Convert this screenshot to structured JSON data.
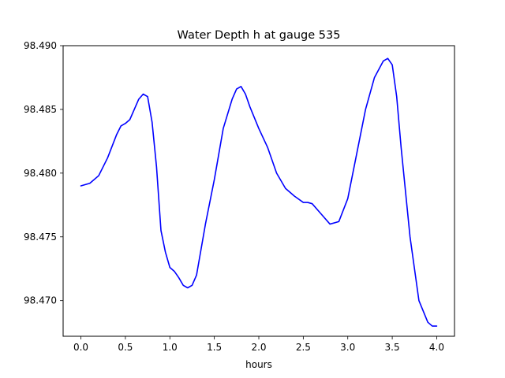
{
  "chart_data": {
    "type": "line",
    "title": "Water Depth h at gauge 535",
    "xlabel": "hours",
    "ylabel": "",
    "xlim": [
      -0.2,
      4.2
    ],
    "ylim": [
      98.4672,
      98.49
    ],
    "xticks": [
      0.0,
      0.5,
      1.0,
      1.5,
      2.0,
      2.5,
      3.0,
      3.5,
      4.0
    ],
    "xtick_labels": [
      "0.0",
      "0.5",
      "1.0",
      "1.5",
      "2.0",
      "2.5",
      "3.0",
      "3.5",
      "4.0"
    ],
    "yticks": [
      98.47,
      98.475,
      98.48,
      98.485,
      98.49
    ],
    "ytick_labels": [
      "98.470",
      "98.475",
      "98.480",
      "98.485",
      "98.490"
    ],
    "grid": false,
    "series": [
      {
        "color": "#0000ff",
        "x": [
          0.0,
          0.1,
          0.2,
          0.3,
          0.4,
          0.45,
          0.5,
          0.55,
          0.6,
          0.65,
          0.7,
          0.75,
          0.8,
          0.85,
          0.9,
          0.95,
          1.0,
          1.05,
          1.1,
          1.15,
          1.2,
          1.25,
          1.3,
          1.35,
          1.4,
          1.5,
          1.6,
          1.7,
          1.75,
          1.8,
          1.85,
          1.9,
          2.0,
          2.1,
          2.2,
          2.3,
          2.4,
          2.5,
          2.55,
          2.6,
          2.7,
          2.8,
          2.9,
          3.0,
          3.1,
          3.2,
          3.3,
          3.4,
          3.45,
          3.5,
          3.55,
          3.6,
          3.7,
          3.8,
          3.9,
          3.95,
          4.0
        ],
        "y": [
          98.479,
          98.4792,
          98.4798,
          98.4812,
          98.483,
          98.4837,
          98.4839,
          98.4842,
          98.485,
          98.4858,
          98.4862,
          98.486,
          98.484,
          98.4805,
          98.4755,
          98.4738,
          98.4726,
          98.4723,
          98.4718,
          98.4712,
          98.471,
          98.4712,
          98.472,
          98.474,
          98.476,
          98.4795,
          98.4835,
          98.4858,
          98.4866,
          98.4868,
          98.4862,
          98.4852,
          98.4835,
          98.482,
          98.48,
          98.4788,
          98.4782,
          98.4777,
          98.4777,
          98.4776,
          98.4768,
          98.476,
          98.4762,
          98.478,
          98.4815,
          98.485,
          98.4875,
          98.4888,
          98.489,
          98.4885,
          98.486,
          98.482,
          98.475,
          98.47,
          98.4683,
          98.468,
          98.468
        ]
      }
    ]
  }
}
